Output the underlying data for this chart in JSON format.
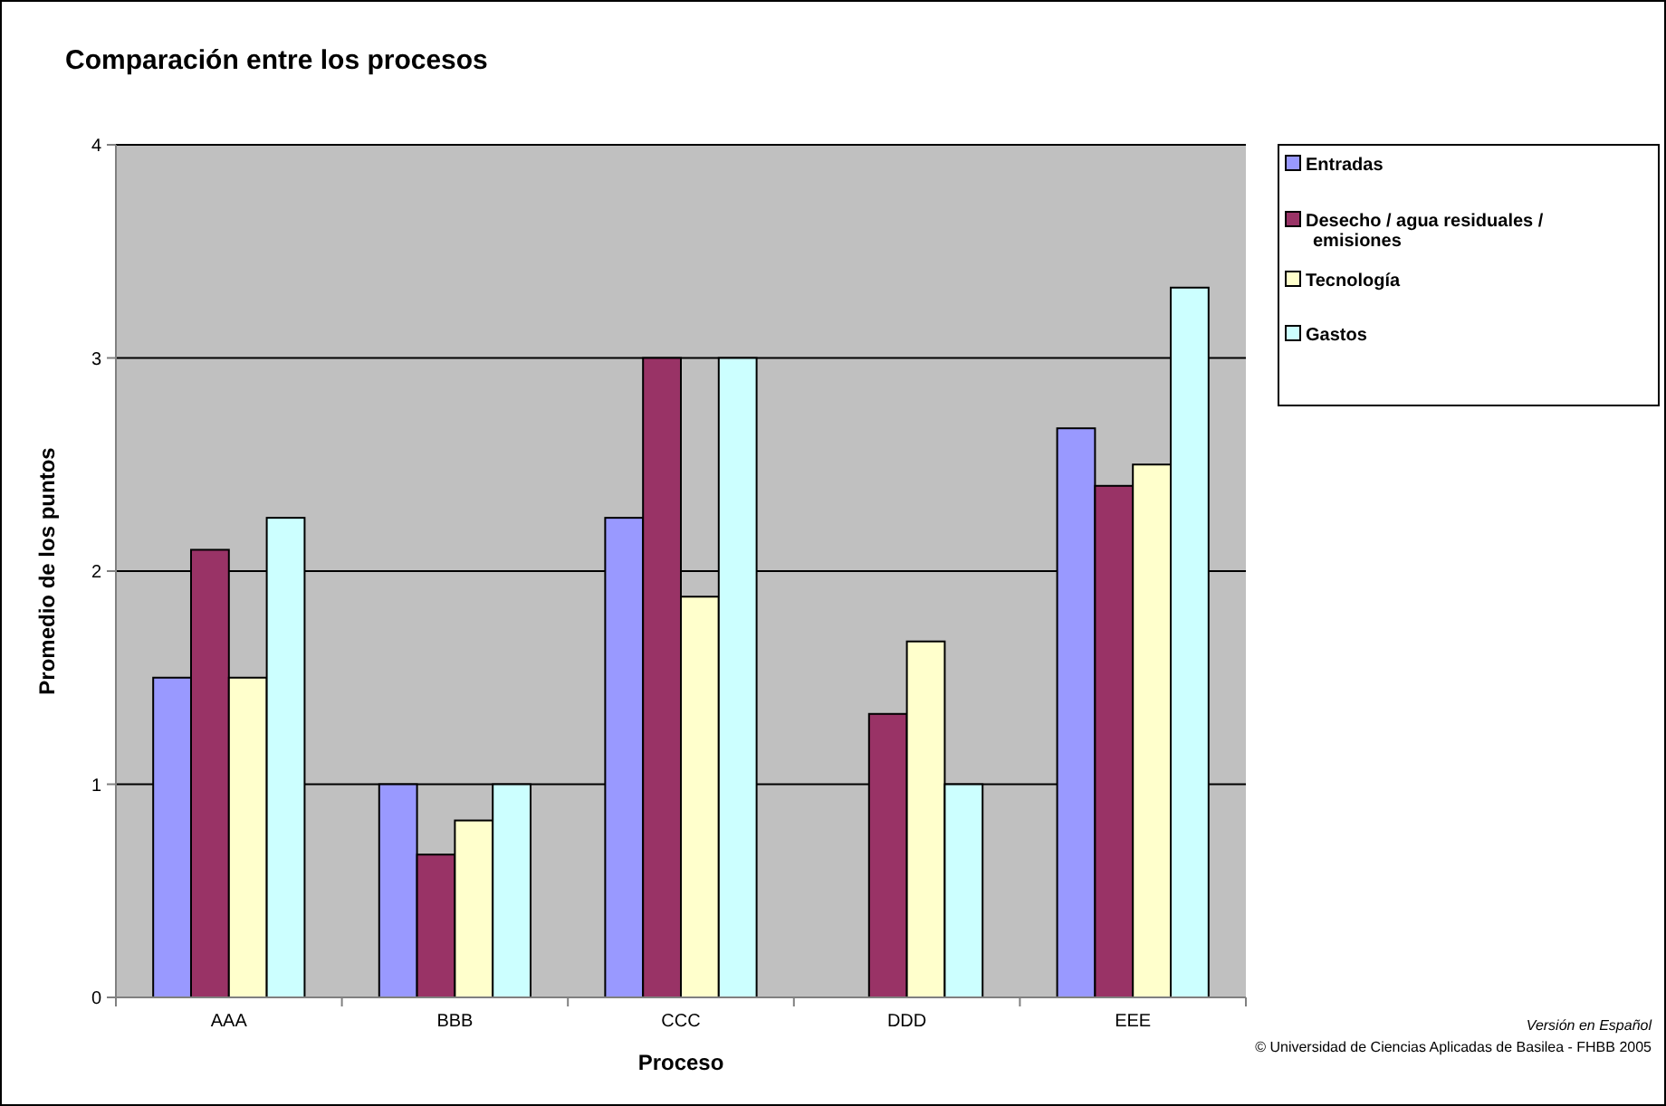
{
  "chart_data": {
    "type": "bar",
    "title": "Comparación entre los procesos",
    "xlabel": "Proceso",
    "ylabel": "Promedio de los puntos",
    "categories": [
      "AAA",
      "BBB",
      "CCC",
      "DDD",
      "EEE"
    ],
    "series": [
      {
        "name": "Entradas",
        "color": "#9999ff",
        "values": [
          1.5,
          1,
          2.25,
          null,
          2.67
        ]
      },
      {
        "name": "Desecho / agua residuales / emisiones",
        "color": "#993366",
        "values": [
          2.1,
          0.67,
          3,
          1.33,
          2.4
        ]
      },
      {
        "name": "Tecnología",
        "color": "#ffffcc",
        "values": [
          1.5,
          0.83,
          1.88,
          1.67,
          2.5
        ]
      },
      {
        "name": "Gastos",
        "color": "#ccffff",
        "values": [
          2.25,
          1,
          3,
          1,
          3.33
        ]
      }
    ],
    "ylim": [
      0,
      4
    ],
    "yticks": [
      0,
      1,
      2,
      3,
      4
    ],
    "grid": "y",
    "legend": "top right",
    "annotations": [
      "Versión en Español",
      "© Universidad de Ciencias Aplicadas de Basilea - FHBB 2005"
    ]
  }
}
